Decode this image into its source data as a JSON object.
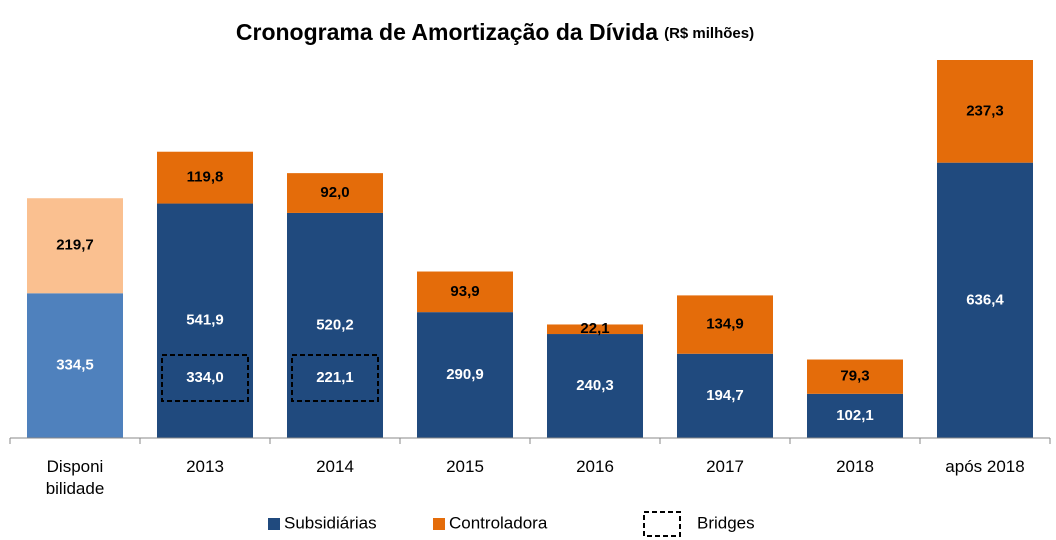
{
  "chart_data": {
    "type": "stacked-bar",
    "title": "Cronograma de Amortização da Dívida",
    "subtitle": "(R$ milhões)",
    "categories": [
      "Disponi\nbilidade",
      "2013",
      "2014",
      "2015",
      "2016",
      "2017",
      "2018",
      "após 2018"
    ],
    "series": [
      {
        "name": "Subsidiárias",
        "color": "#204a7e",
        "colors": [
          "#4f81bd",
          "#204a7e",
          "#204a7e",
          "#204a7e",
          "#204a7e",
          "#204a7e",
          "#204a7e",
          "#204a7e"
        ],
        "values": [
          334.5,
          541.9,
          520.2,
          290.9,
          240.3,
          194.7,
          102.1,
          636.4
        ],
        "value_labels": [
          "334,5",
          "541,9",
          "520,2",
          "290,9",
          "240,3",
          "194,7",
          "102,1",
          "636,4"
        ]
      },
      {
        "name": "Controladora",
        "color": "#e46c0a",
        "colors": [
          "#fac090",
          "#e46c0a",
          "#e46c0a",
          "#e46c0a",
          "#e46c0a",
          "#e46c0a",
          "#e46c0a",
          "#e46c0a"
        ],
        "values": [
          219.7,
          119.8,
          92.0,
          93.9,
          22.1,
          134.9,
          79.3,
          237.3
        ],
        "value_labels": [
          "219,7",
          "119,8",
          "92,0",
          "93,9",
          "22,1",
          "134,9",
          "79,3",
          "237,3"
        ]
      }
    ],
    "bridges": {
      "name": "Bridges",
      "values": [
        null,
        334.0,
        221.1,
        null,
        null,
        null,
        null,
        null
      ],
      "value_labels": [
        null,
        "334,0",
        "221,1",
        null,
        null,
        null,
        null,
        null
      ]
    },
    "legend": "bottom"
  }
}
